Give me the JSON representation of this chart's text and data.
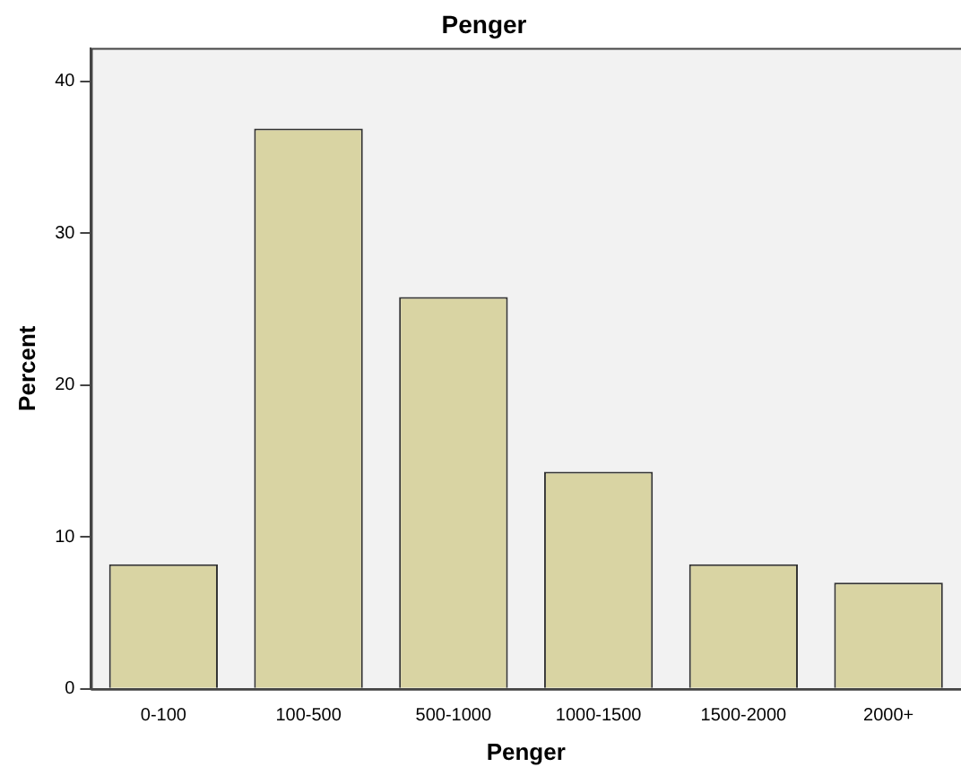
{
  "chart_data": {
    "type": "bar",
    "title": "Penger",
    "xlabel": "Penger",
    "ylabel": "Percent",
    "categories": [
      "0-100",
      "100-500",
      "500-1000",
      "1000-1500",
      "1500-2000",
      "2000+"
    ],
    "values": [
      8.2,
      36.9,
      25.8,
      14.3,
      8.2,
      7.0
    ],
    "color": "#d9d4a3",
    "ylim": [
      0,
      42.2
    ],
    "yticks": [
      0,
      10,
      20,
      30,
      40
    ],
    "grid": false,
    "legend": false
  }
}
